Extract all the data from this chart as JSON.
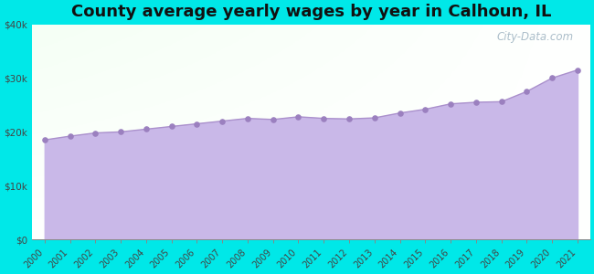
{
  "title": "County average yearly wages by year in Calhoun, IL",
  "years": [
    2000,
    2001,
    2002,
    2003,
    2004,
    2005,
    2006,
    2007,
    2008,
    2009,
    2010,
    2011,
    2012,
    2013,
    2014,
    2015,
    2016,
    2017,
    2018,
    2019,
    2020,
    2021
  ],
  "wages": [
    18500,
    19200,
    19800,
    20000,
    20500,
    21000,
    21500,
    22000,
    22500,
    22300,
    22800,
    22500,
    22400,
    22600,
    23500,
    24200,
    25200,
    25500,
    25600,
    27500,
    30000,
    31500
  ],
  "ylim": [
    0,
    40000
  ],
  "yticks": [
    0,
    10000,
    20000,
    30000,
    40000
  ],
  "ytick_labels": [
    "$0",
    "$10k",
    "$20k",
    "$30k",
    "$40k"
  ],
  "fill_color": "#c9b8e8",
  "line_color": "#aa90cc",
  "dot_color": "#9b80bf",
  "bg_outer": "#00e8e8",
  "title_fontsize": 13,
  "watermark": "City-Data.com"
}
